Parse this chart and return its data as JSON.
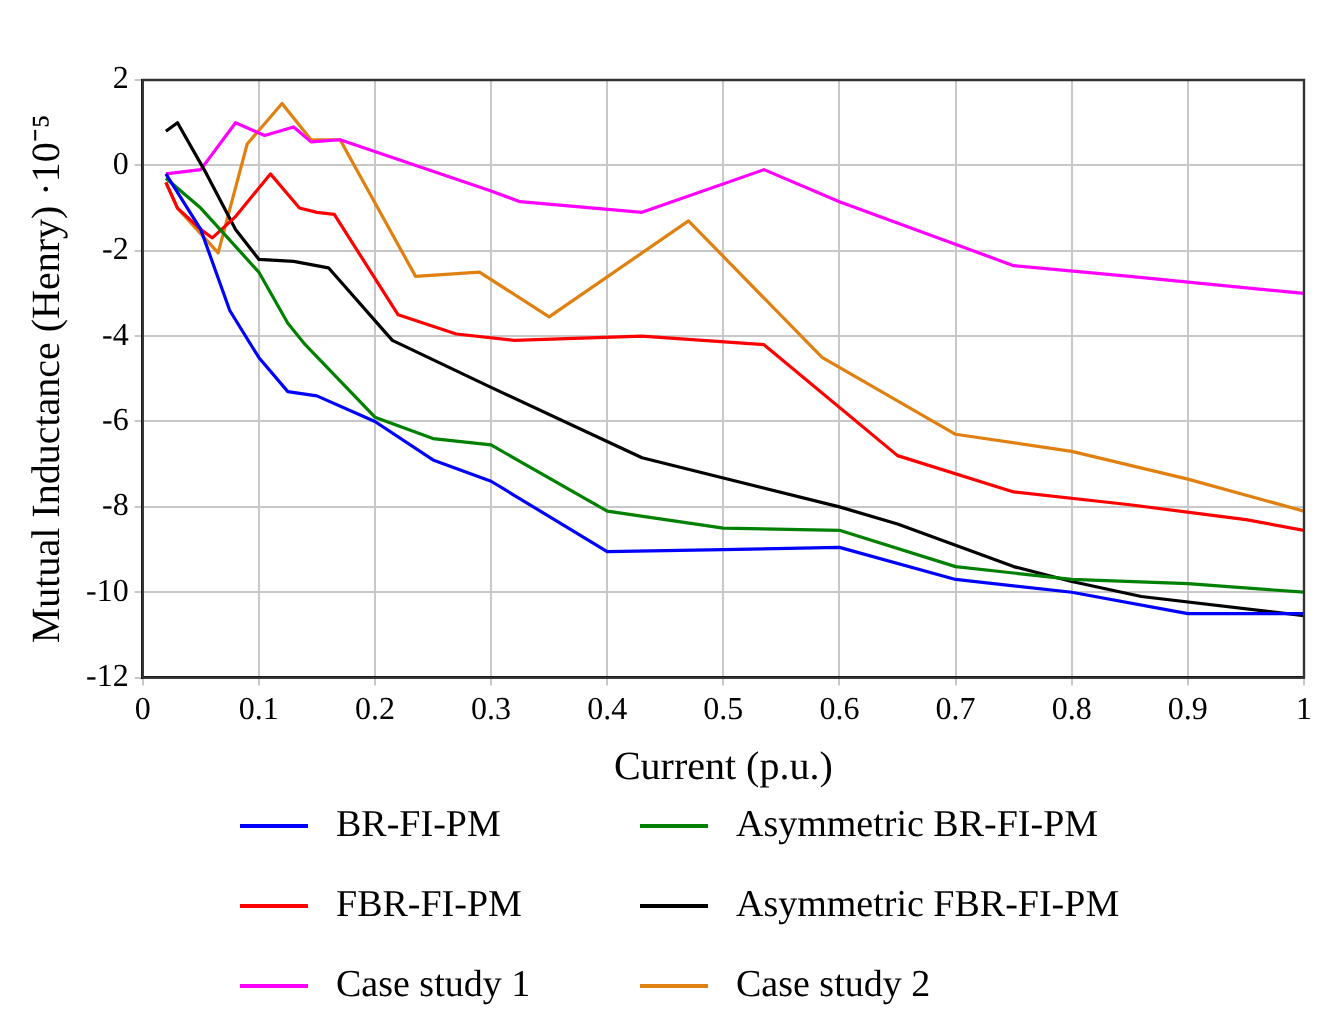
{
  "chart_data": {
    "type": "line",
    "xlabel": "Current (p.u.)",
    "ylabel": "Mutual Inductance (Henry) ·10⁻⁵",
    "xlim": [
      0,
      1
    ],
    "xticks": [
      0,
      0.1,
      0.2,
      0.3,
      0.4,
      0.5,
      0.6,
      0.7,
      0.8,
      0.9,
      1
    ],
    "ylim": [
      -12,
      2
    ],
    "yticks": [
      -12,
      -10,
      -8,
      -6,
      -4,
      -2,
      0,
      2
    ],
    "grid": true,
    "legend": "bottom",
    "marker": "none",
    "line_style": "solid",
    "series": [
      {
        "name": "BR-FI-PM",
        "color": "#0000ff",
        "x": [
          0.02,
          0.05,
          0.075,
          0.1,
          0.125,
          0.15,
          0.2,
          0.25,
          0.3,
          0.4,
          0.5,
          0.6,
          0.7,
          0.8,
          0.9,
          1
        ],
        "values": [
          -0.2,
          -1.5,
          -3.4,
          -4.5,
          -5.3,
          -5.4,
          -6.0,
          -6.9,
          -7.4,
          -9.05,
          -9.0,
          -8.95,
          -9.7,
          -10.0,
          -10.5,
          -10.5
        ]
      },
      {
        "name": "Asymmetric BR-FI-PM",
        "color": "#008000",
        "x": [
          0.02,
          0.05,
          0.1,
          0.125,
          0.14,
          0.2,
          0.25,
          0.3,
          0.4,
          0.5,
          0.6,
          0.7,
          0.8,
          0.9,
          1
        ],
        "values": [
          -0.3,
          -1.0,
          -2.5,
          -3.7,
          -4.2,
          -5.9,
          -6.4,
          -6.55,
          -8.1,
          -8.5,
          -8.55,
          -9.4,
          -9.7,
          -9.8,
          -10.0
        ]
      },
      {
        "name": "FBR-FI-PM",
        "color": "#ff0000",
        "x": [
          0.02,
          0.03,
          0.05,
          0.06,
          0.08,
          0.11,
          0.135,
          0.15,
          0.165,
          0.22,
          0.27,
          0.32,
          0.43,
          0.535,
          0.65,
          0.75,
          0.85,
          0.95,
          1
        ],
        "values": [
          -0.4,
          -1.0,
          -1.5,
          -1.7,
          -1.2,
          -0.2,
          -1.0,
          -1.1,
          -1.15,
          -3.5,
          -3.95,
          -4.1,
          -4.0,
          -4.2,
          -6.8,
          -7.65,
          -7.95,
          -8.3,
          -8.55
        ]
      },
      {
        "name": "Asymmetric FBR-FI-PM",
        "color": "#000000",
        "x": [
          0.02,
          0.03,
          0.055,
          0.08,
          0.1,
          0.13,
          0.16,
          0.215,
          0.3,
          0.43,
          0.6,
          0.65,
          0.75,
          0.8,
          0.86,
          1
        ],
        "values": [
          0.8,
          1.0,
          -0.2,
          -1.5,
          -2.2,
          -2.25,
          -2.4,
          -4.1,
          -5.2,
          -6.85,
          -8.0,
          -8.4,
          -9.4,
          -9.75,
          -10.1,
          -10.55
        ]
      },
      {
        "name": "Case study 1",
        "color": "#ff00ff",
        "x": [
          0.02,
          0.05,
          0.08,
          0.105,
          0.13,
          0.145,
          0.17,
          0.3,
          0.325,
          0.43,
          0.535,
          0.6,
          0.75,
          0.85,
          1
        ],
        "values": [
          -0.2,
          -0.1,
          1.0,
          0.7,
          0.9,
          0.55,
          0.6,
          -0.6,
          -0.85,
          -1.1,
          -0.1,
          -0.85,
          -2.35,
          -2.6,
          -3.0
        ]
      },
      {
        "name": "Case study 2",
        "color": "#e08010",
        "x": [
          0.02,
          0.03,
          0.065,
          0.09,
          0.12,
          0.145,
          0.17,
          0.235,
          0.29,
          0.35,
          0.47,
          0.585,
          0.7,
          0.8,
          0.9,
          1
        ],
        "values": [
          -0.4,
          -1.0,
          -2.05,
          0.5,
          1.45,
          0.6,
          0.6,
          -2.6,
          -2.5,
          -3.55,
          -1.3,
          -4.5,
          -6.3,
          -6.7,
          -7.35,
          -8.1
        ]
      }
    ]
  }
}
